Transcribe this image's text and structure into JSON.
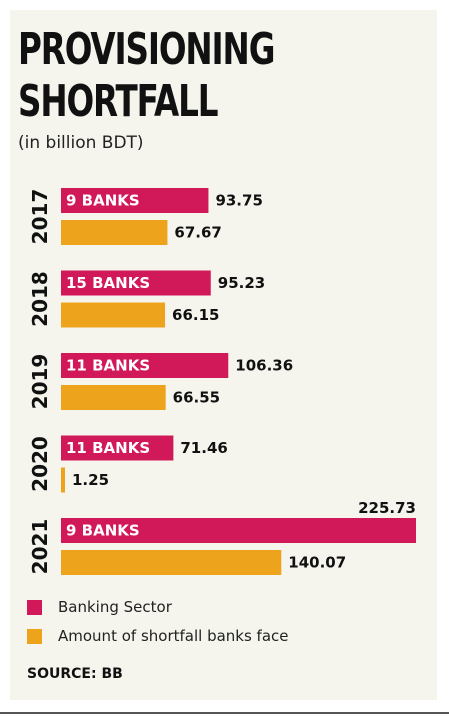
{
  "title_lines": [
    "PROVISIONING",
    "SHORTFALL"
  ],
  "subtitle": "(in billion BDT)",
  "colors": {
    "banking_sector": "#d1195a",
    "shortfall": "#eda41c"
  },
  "chart_data": {
    "type": "bar",
    "orientation": "horizontal",
    "title": "PROVISIONING SHORTFALL",
    "subtitle": "(in billion BDT)",
    "categories": [
      "2017",
      "2018",
      "2019",
      "2020",
      "2021"
    ],
    "bar_labels": [
      "9 BANKS",
      "15 BANKS",
      "11 BANKS",
      "11 BANKS",
      "9 BANKS"
    ],
    "series": [
      {
        "name": "Banking Sector",
        "values": [
          93.75,
          95.23,
          106.36,
          71.46,
          225.73
        ]
      },
      {
        "name": "Amount of shortfall banks face",
        "values": [
          67.67,
          66.15,
          66.55,
          1.25,
          140.07
        ]
      }
    ],
    "value_labels": [
      [
        "93.75",
        "95.23",
        "106.36",
        "71.46",
        "225.73"
      ],
      [
        "67.67",
        "66.15",
        "66.55",
        "1.25",
        "140.07"
      ]
    ],
    "xlim": [
      0,
      225.73
    ],
    "grid": false,
    "legend_position": "bottom-left"
  },
  "legend": [
    {
      "label": "Banking Sector"
    },
    {
      "label": "Amount of shortfall banks face"
    }
  ],
  "source": "SOURCE: BB"
}
